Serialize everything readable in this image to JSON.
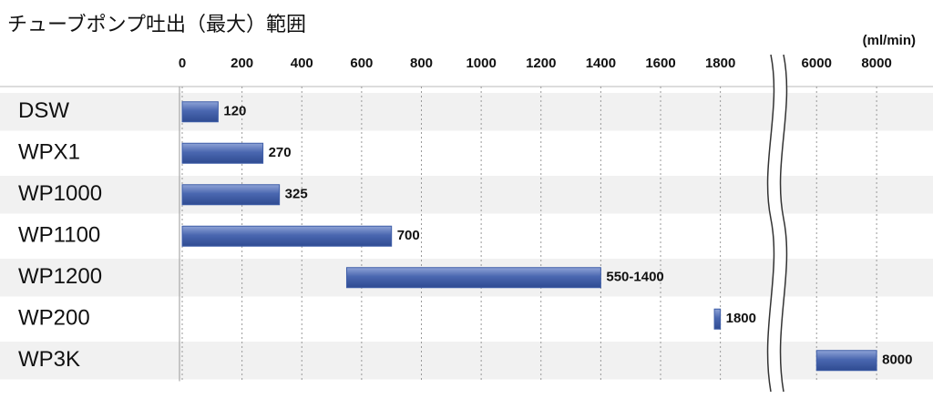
{
  "chart_data": {
    "type": "range-bar",
    "title": "チューブポンプ吐出（最大）範囲",
    "unit_label": "(ml/min)",
    "categories": [
      "DSW",
      "WPX1",
      "WP1000",
      "WP1100",
      "WP1200",
      "WP200",
      "WP3K"
    ],
    "starts": [
      0,
      0,
      0,
      0,
      550,
      1780,
      6000
    ],
    "values": [
      120,
      270,
      325,
      700,
      1400,
      1800,
      8000
    ],
    "value_labels": [
      "120",
      "270",
      "325",
      "700",
      "550-1400",
      "1800",
      "8000"
    ],
    "color": "#3f5ea8",
    "xlim": [
      0,
      1920
    ],
    "xticks": [
      0,
      200,
      400,
      600,
      800,
      1000,
      1200,
      1400,
      1600,
      1800
    ],
    "x2lim": [
      4900,
      9150
    ],
    "x2ticks": [
      6000,
      8000
    ],
    "grid": true
  }
}
